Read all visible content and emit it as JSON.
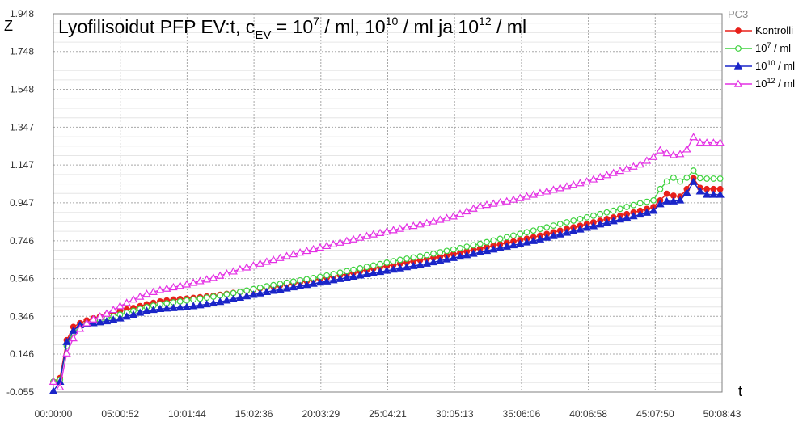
{
  "chart_data": {
    "type": "line",
    "title": {
      "prefix": "Lyofilisoidut PFP EV:t, c",
      "subscript": "EV",
      "eq": " = 10",
      "exp1": "7",
      "mid1": " / ml, 10",
      "exp2": "10",
      "mid2": " / ml ja 10",
      "exp3": "12",
      "suffix": " / ml"
    },
    "ylabel": "Z",
    "xlabel": "t",
    "legend_title": "PC3",
    "legend_position": "top-right",
    "grid": true,
    "ylim": [
      -0.055,
      1.948
    ],
    "yticks": [
      -0.055,
      0.146,
      0.346,
      0.546,
      0.746,
      0.947,
      1.147,
      1.347,
      1.548,
      1.748,
      1.948
    ],
    "ytick_labels": [
      "-0.055",
      "0.146",
      "0.346",
      "0.546",
      "0.746",
      "0.947",
      "1.147",
      "1.347",
      "1.548",
      "1.748",
      "1.948"
    ],
    "xlim_hours": [
      0,
      50.145
    ],
    "xticks_hours": [
      0,
      5.0144,
      10.0289,
      15.0433,
      20.0581,
      25.0725,
      30.0869,
      35.1017,
      40.1161,
      45.1306,
      50.1453
    ],
    "xtick_labels": [
      "00:00:00",
      "05:00:52",
      "10:01:44",
      "15:02:36",
      "20:03:29",
      "25:04:21",
      "30:05:13",
      "35:06:06",
      "40:06:58",
      "45:07:50",
      "50:08:43"
    ],
    "series": [
      {
        "name": "Kontrolli",
        "legend": {
          "base": "Kontrolli",
          "exp": "",
          "suffix": ""
        },
        "color": "#e8201a",
        "marker": "circle",
        "filled": true,
        "x": [
          0,
          0.25,
          0.5,
          0.75,
          1,
          1.25,
          1.5,
          1.75,
          2,
          2.5,
          3,
          4,
          5,
          6,
          7,
          8,
          9,
          10,
          12,
          14,
          16,
          18,
          20,
          22,
          24,
          26,
          28,
          30,
          32,
          34,
          36,
          38,
          40,
          42,
          44,
          45,
          45.5,
          46,
          46.5,
          47,
          47.5,
          47.8,
          48.2,
          48.6,
          49,
          49.5,
          50
        ],
        "y": [
          0.0,
          -0.05,
          0.02,
          0.14,
          0.22,
          0.26,
          0.29,
          0.3,
          0.31,
          0.325,
          0.335,
          0.355,
          0.375,
          0.39,
          0.41,
          0.425,
          0.435,
          0.44,
          0.455,
          0.475,
          0.5,
          0.52,
          0.545,
          0.57,
          0.6,
          0.625,
          0.65,
          0.675,
          0.705,
          0.735,
          0.765,
          0.8,
          0.835,
          0.87,
          0.905,
          0.925,
          0.96,
          0.995,
          0.985,
          0.98,
          1.02,
          1.11,
          1.045,
          1.02,
          1.02,
          1.02,
          1.02
        ]
      },
      {
        "name": "10^7 / ml",
        "legend": {
          "base": "10",
          "exp": "7",
          "suffix": " / ml"
        },
        "color": "#3ed23e",
        "marker": "circle",
        "filled": false,
        "x": [
          0,
          0.25,
          0.5,
          0.75,
          1,
          1.25,
          1.5,
          1.75,
          2,
          2.5,
          3,
          4,
          5,
          6,
          7,
          8,
          9,
          10,
          12,
          14,
          16,
          18,
          20,
          22,
          24,
          26,
          28,
          30,
          32,
          34,
          36,
          38,
          40,
          42,
          44,
          45,
          45.5,
          46,
          46.5,
          47,
          47.5,
          47.8,
          48.2,
          48.6,
          49,
          49.5,
          50
        ],
        "y": [
          0.0,
          -0.05,
          0.01,
          0.12,
          0.19,
          0.23,
          0.26,
          0.28,
          0.29,
          0.305,
          0.315,
          0.335,
          0.355,
          0.375,
          0.395,
          0.41,
          0.42,
          0.43,
          0.45,
          0.475,
          0.505,
          0.53,
          0.555,
          0.585,
          0.615,
          0.645,
          0.67,
          0.7,
          0.73,
          0.765,
          0.8,
          0.835,
          0.87,
          0.905,
          0.945,
          0.96,
          1.02,
          1.06,
          1.08,
          1.06,
          1.08,
          1.15,
          1.085,
          1.075,
          1.075,
          1.075,
          1.075
        ]
      },
      {
        "name": "10^10 / ml",
        "legend": {
          "base": "10",
          "exp": "10",
          "suffix": " / ml"
        },
        "color": "#1a25c8",
        "marker": "triangle",
        "filled": true,
        "x": [
          0,
          0.25,
          0.5,
          0.75,
          1,
          1.25,
          1.5,
          1.75,
          2,
          2.5,
          3,
          4,
          5,
          6,
          7,
          8,
          9,
          10,
          12,
          14,
          16,
          18,
          20,
          22,
          24,
          26,
          28,
          30,
          32,
          34,
          36,
          38,
          40,
          42,
          44,
          45,
          45.5,
          46,
          46.5,
          47,
          47.5,
          47.8,
          48.2,
          48.6,
          49,
          49.5,
          50
        ],
        "y": [
          -0.05,
          -0.05,
          0.0,
          0.13,
          0.21,
          0.25,
          0.27,
          0.29,
          0.3,
          0.305,
          0.31,
          0.32,
          0.335,
          0.355,
          0.375,
          0.385,
          0.39,
          0.395,
          0.415,
          0.445,
          0.475,
          0.5,
          0.525,
          0.55,
          0.575,
          0.6,
          0.625,
          0.655,
          0.685,
          0.715,
          0.745,
          0.78,
          0.815,
          0.85,
          0.885,
          0.905,
          0.94,
          0.955,
          0.955,
          0.96,
          1.0,
          1.085,
          1.03,
          1.0,
          0.99,
          0.99,
          0.99
        ]
      },
      {
        "name": "10^12 / ml",
        "legend": {
          "base": "10",
          "exp": "12",
          "suffix": " / ml"
        },
        "color": "#e431e4",
        "marker": "triangle",
        "filled": false,
        "x": [
          0,
          0.25,
          0.5,
          0.75,
          1,
          1.25,
          1.5,
          1.75,
          2,
          2.5,
          3,
          4,
          5,
          6,
          7,
          8,
          9,
          10,
          12,
          14,
          16,
          18,
          20,
          22,
          24,
          26,
          28,
          30,
          32,
          34,
          36,
          38,
          40,
          42,
          44,
          45,
          45.5,
          46,
          46.5,
          47,
          47.5,
          47.8,
          48.2,
          48.6,
          49,
          49.5,
          50
        ],
        "y": [
          0.0,
          -0.05,
          -0.03,
          0.08,
          0.15,
          0.19,
          0.23,
          0.26,
          0.28,
          0.31,
          0.33,
          0.36,
          0.4,
          0.435,
          0.465,
          0.485,
          0.5,
          0.515,
          0.55,
          0.595,
          0.635,
          0.675,
          0.71,
          0.745,
          0.78,
          0.81,
          0.84,
          0.875,
          0.93,
          0.955,
          0.99,
          1.025,
          1.06,
          1.105,
          1.15,
          1.19,
          1.225,
          1.21,
          1.2,
          1.205,
          1.23,
          1.32,
          1.27,
          1.265,
          1.265,
          1.265,
          1.265
        ]
      }
    ]
  }
}
